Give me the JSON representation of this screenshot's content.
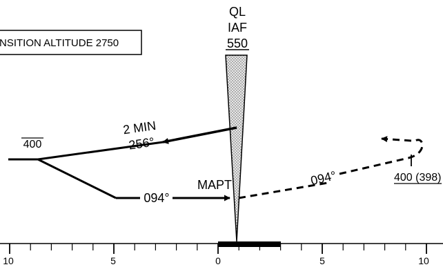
{
  "transition_box": {
    "text": "NSITION ALTITUDE 2750"
  },
  "fix": {
    "id": "QL",
    "role": "IAF",
    "altitude": "550"
  },
  "outbound": {
    "time": "2 MIN",
    "course": "256°"
  },
  "left_altitude": "400",
  "missed_approach": {
    "label": "MAPT",
    "inbound_course": "094°",
    "missed_course": "094°",
    "hold_altitude": "400 (398)"
  },
  "scale": {
    "labels": [
      "10",
      "5",
      "0",
      "5",
      "10"
    ],
    "units_per_side": 10
  },
  "colors": {
    "ink": "#000000",
    "cone_fill": "#e8e8e8",
    "cone_dot": "#555555"
  }
}
